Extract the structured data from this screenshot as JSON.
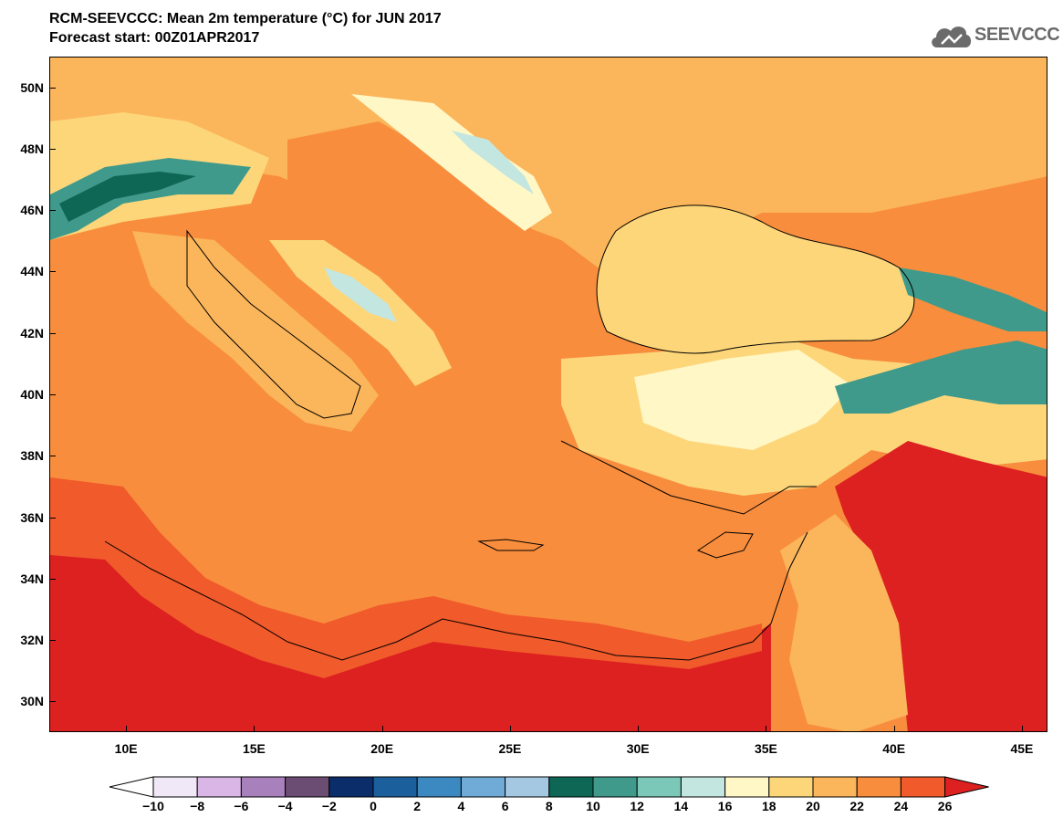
{
  "title": {
    "line1": "RCM-SEEVCCC: Mean 2m temperature (°C) for JUN 2017",
    "line2": "Forecast start: 00Z01APR2017"
  },
  "logo": {
    "text": "SEEVCCC",
    "icon": "cloud-icon"
  },
  "map": {
    "projection": "lat-lon",
    "lon_range": [
      7,
      46
    ],
    "lat_range": [
      29,
      51
    ],
    "lat_ticks": [
      "50N",
      "48N",
      "46N",
      "44N",
      "42N",
      "40N",
      "38N",
      "36N",
      "34N",
      "32N",
      "30N"
    ],
    "lon_ticks": [
      "10E",
      "15E",
      "20E",
      "25E",
      "30E",
      "35E",
      "40E",
      "45E"
    ],
    "lat_values": [
      50,
      48,
      46,
      44,
      42,
      40,
      38,
      36,
      34,
      32,
      30
    ],
    "lon_values": [
      10,
      15,
      20,
      25,
      30,
      35,
      40,
      45
    ]
  },
  "colorbar": {
    "labels": [
      "−10",
      "−8",
      "−6",
      "−4",
      "−2",
      "0",
      "2",
      "4",
      "6",
      "8",
      "10",
      "12",
      "14",
      "16",
      "18",
      "20",
      "22",
      "24",
      "26"
    ],
    "colors": [
      "#f0e8f6",
      "#d9b6e6",
      "#a880bb",
      "#6b4c72",
      "#0b2e6a",
      "#1b5f9c",
      "#3b89c0",
      "#6fabd6",
      "#a4c8e2",
      "#0e6754",
      "#3f9a8b",
      "#7cc8b8",
      "#c4e6e0",
      "#fff7c6",
      "#fdd67a",
      "#fbb55a",
      "#f88d3d",
      "#f15a2b"
    ],
    "under_color": "#ffffff",
    "over_color": "#dd2020"
  },
  "colors": {
    "sea_orange": "#f88d3d",
    "land_light": "#fbb55a",
    "land_pale": "#fdd67a",
    "cold": "#c4e6e0",
    "alpine": "#0e6754",
    "hot": "#dd2020",
    "border": "#000000"
  }
}
